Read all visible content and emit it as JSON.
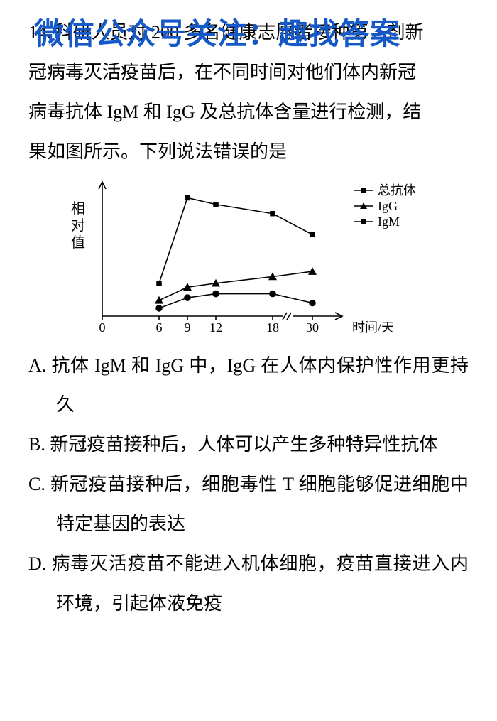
{
  "watermark": "微信公众号关注：趣找答案",
  "question_number": "14.",
  "stem_lines": [
    "科研人员对 200 多名健康志愿者接种第 2 剂新",
    "冠病毒灭活疫苗后，在不同时间对他们体内新冠",
    "病毒抗体 IgM 和 IgG 及总抗体含量进行检测，结",
    "果如图所示。下列说法错误的是"
  ],
  "options": {
    "A": "抗体 IgM 和 IgG 中，IgG 在人体内保护性作用更持久",
    "B": "新冠疫苗接种后，人体可以产生多种特异性抗体",
    "C": "新冠疫苗接种后，细胞毒性 T 细胞能够促进细胞中特定基因的表达",
    "D": "病毒灭活疫苗不能进入机体细胞，疫苗直接进入内环境，引起体液免疫"
  },
  "chart": {
    "type": "line",
    "ylabel": "相对值",
    "xlabel": "时间/天",
    "x_ticks": [
      0,
      6,
      9,
      12,
      18,
      30
    ],
    "x_break_after": 18,
    "legend": [
      {
        "label": "总抗体",
        "marker": "square"
      },
      {
        "label": "IgG",
        "marker": "triangle"
      },
      {
        "label": "IgM",
        "marker": "circle"
      }
    ],
    "series": {
      "total": {
        "marker": "square",
        "x": [
          6,
          9,
          12,
          18,
          30
        ],
        "y": [
          25,
          90,
          85,
          78,
          62
        ]
      },
      "IgG": {
        "marker": "triangle",
        "x": [
          6,
          9,
          12,
          18,
          30
        ],
        "y": [
          12,
          22,
          25,
          30,
          34
        ]
      },
      "IgM": {
        "marker": "circle",
        "x": [
          6,
          9,
          12,
          18,
          30
        ],
        "y": [
          6,
          14,
          17,
          17,
          10
        ]
      }
    },
    "ylim": [
      0,
      100
    ],
    "colors": {
      "stroke": "#000000",
      "background": "#ffffff"
    },
    "line_width": 1.6,
    "marker_size": 6,
    "font_size": 18
  }
}
